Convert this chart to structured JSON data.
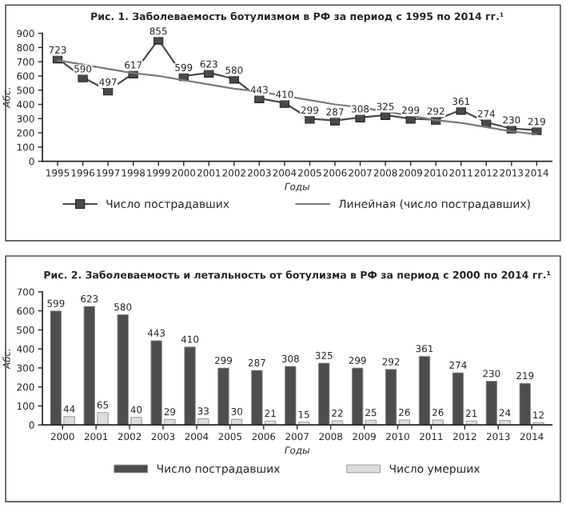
{
  "chart_data": [
    {
      "type": "line",
      "title": "Рис. 1. Заболеваемость ботулизмом в РФ за период с 1995 по 2014 гг.¹",
      "xlabel": "Годы",
      "ylabel": "Абс.",
      "categories": [
        "1995",
        "1996",
        "1997",
        "1998",
        "1999",
        "2000",
        "2001",
        "2002",
        "2003",
        "2004",
        "2005",
        "2006",
        "2007",
        "2008",
        "2009",
        "2010",
        "2011",
        "2012",
        "2013",
        "2014"
      ],
      "series": [
        {
          "name": "Число пострадавших",
          "color": "#4a4a4a",
          "marker": "square",
          "values": [
            723,
            590,
            497,
            617,
            855,
            599,
            623,
            580,
            443,
            410,
            299,
            287,
            308,
            325,
            299,
            292,
            361,
            274,
            230,
            219
          ]
        },
        {
          "name": "Линейная (число пострадавших)",
          "color": "#7a7a7a",
          "marker": "none",
          "values": [
            710,
            680,
            650,
            620,
            600,
            570,
            540,
            510,
            490,
            460,
            430,
            400,
            380,
            350,
            320,
            290,
            270,
            240,
            210,
            190
          ],
          "value_labels": [
            null,
            null,
            null,
            null,
            null,
            null,
            null,
            null,
            null,
            null,
            null,
            null,
            null,
            null,
            null,
            null,
            null,
            null,
            null,
            null
          ]
        }
      ],
      "ylim": [
        0,
        900
      ],
      "yticks": [
        0,
        100,
        200,
        300,
        400,
        500,
        600,
        700,
        800,
        900
      ],
      "data_labels": true,
      "legend": "bottom",
      "grid": false
    },
    {
      "type": "bar",
      "title": "Рис. 2. Заболеваемость и летальность от ботулизма в РФ за период с 2000 по 2014 гг.¹",
      "xlabel": "Годы",
      "ylabel": "Абс.",
      "categories": [
        "2000",
        "2001",
        "2002",
        "2003",
        "2004",
        "2005",
        "2006",
        "2007",
        "2008",
        "2009",
        "2010",
        "2011",
        "2012",
        "2013",
        "2014"
      ],
      "series": [
        {
          "name": "Число пострадавших",
          "color": "#4d4d4d",
          "values": [
            599,
            623,
            580,
            443,
            410,
            299,
            287,
            308,
            325,
            299,
            292,
            361,
            274,
            230,
            219
          ]
        },
        {
          "name": "Число умерших",
          "color": "#dcdcdc",
          "values": [
            44,
            65,
            40,
            29,
            33,
            30,
            21,
            15,
            22,
            25,
            26,
            26,
            21,
            24,
            12
          ]
        }
      ],
      "ylim": [
        0,
        700
      ],
      "yticks": [
        0,
        100,
        200,
        300,
        400,
        500,
        600,
        700
      ],
      "data_labels": true,
      "legend": "bottom",
      "grid": false
    }
  ]
}
